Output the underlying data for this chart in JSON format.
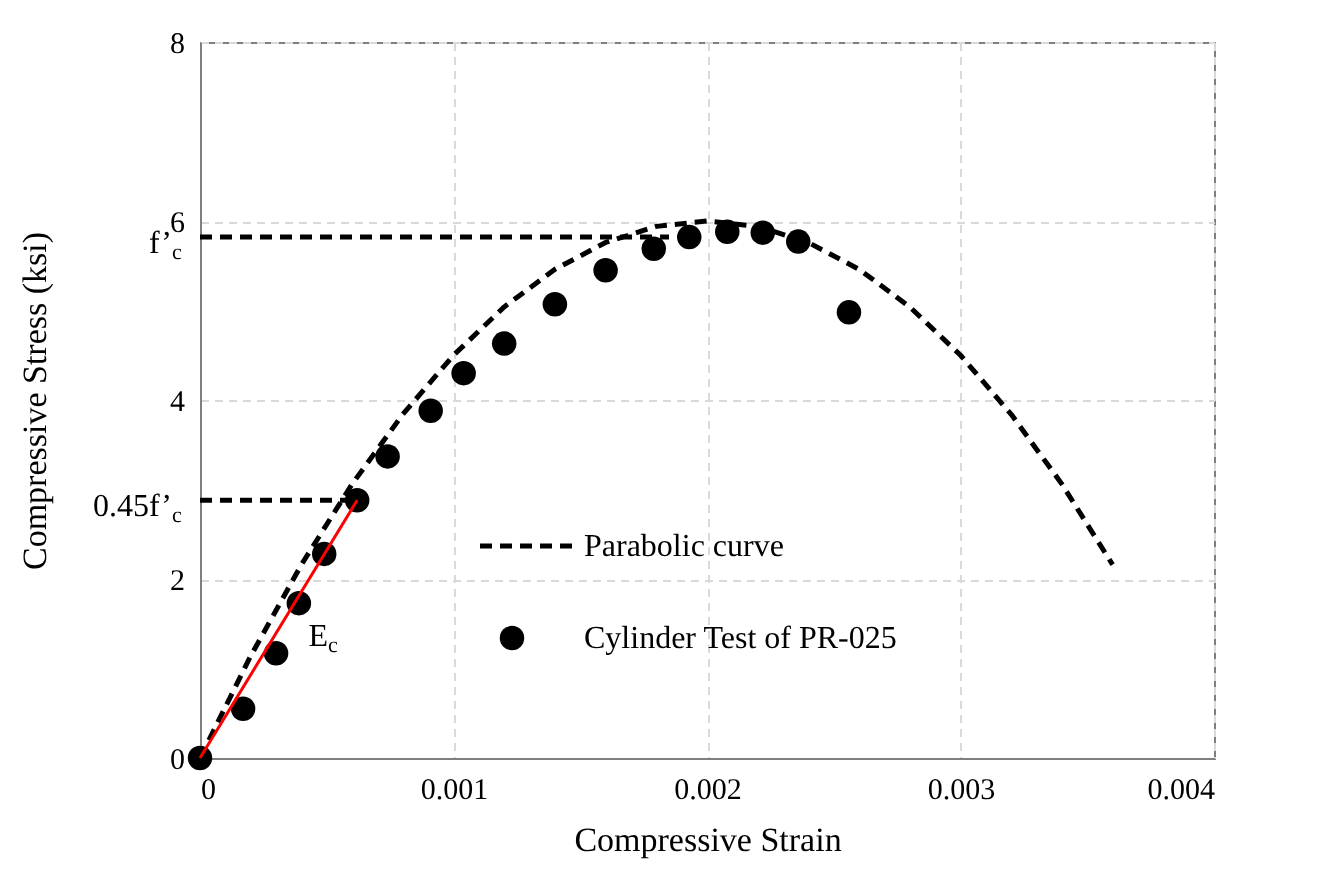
{
  "chart_data": {
    "type": "scatter",
    "xlabel": "Compressive Strain",
    "ylabel": "Compressive Stress (ksi)",
    "xlim": [
      0,
      0.004
    ],
    "xticks": [
      0,
      0.001,
      0.002,
      0.003,
      0.004
    ],
    "ylim": [
      0,
      8
    ],
    "yticks": [
      0,
      2,
      4,
      6,
      8
    ],
    "grid": true,
    "legend": "right",
    "series": [
      {
        "name": "Parabolic curve",
        "type": "line",
        "line_style": "dashed",
        "color": "#000000",
        "x": [
          0,
          0.0002,
          0.0004,
          0.0006,
          0.0008,
          0.001,
          0.0012,
          0.0014,
          0.0016,
          0.0018,
          0.002,
          0.0022,
          0.0024,
          0.0026,
          0.0028,
          0.003,
          0.0032,
          0.0034,
          0.0036
        ],
        "values": [
          0,
          1.14,
          2.16,
          3.06,
          3.84,
          4.5,
          5.04,
          5.46,
          5.76,
          5.94,
          6,
          5.94,
          5.76,
          5.46,
          5.04,
          4.5,
          3.84,
          3.06,
          2.16
        ]
      },
      {
        "name": "Cylinder Test of PR-025",
        "marker": "circle",
        "color": "#000000",
        "x": [
          0,
          0.00017,
          0.0003,
          0.00039,
          0.00049,
          0.00062,
          0.00074,
          0.00091,
          0.00104,
          0.0012,
          0.0014,
          0.0016,
          0.00179,
          0.00193,
          0.00208,
          0.00222,
          0.00236,
          0.00256
        ],
        "values": [
          0,
          0.55,
          1.17,
          1.73,
          2.28,
          2.88,
          3.37,
          3.88,
          4.3,
          4.63,
          5.07,
          5.45,
          5.69,
          5.82,
          5.88,
          5.87,
          5.77,
          4.98
        ]
      },
      {
        "type": "line",
        "line_style": "solid",
        "color": "#ff0000",
        "x": [
          0,
          0.00062
        ],
        "values": [
          0,
          2.88
        ]
      },
      {
        "type": "line",
        "line_style": "dashed",
        "color": "#000000",
        "x": [
          0,
          0.00185
        ],
        "values": [
          5.82,
          5.82
        ]
      },
      {
        "type": "line",
        "line_style": "dashed",
        "color": "#000000",
        "x": [
          0,
          0.00062
        ],
        "values": [
          2.88,
          2.88
        ]
      }
    ],
    "annotations": [
      {
        "text": "f’$_{c}$",
        "x": 0,
        "y": 5.82
      },
      {
        "text": "0.45f’$_{c}$",
        "x": 0,
        "y": 2.88
      },
      "E$_{c}$"
    ]
  }
}
